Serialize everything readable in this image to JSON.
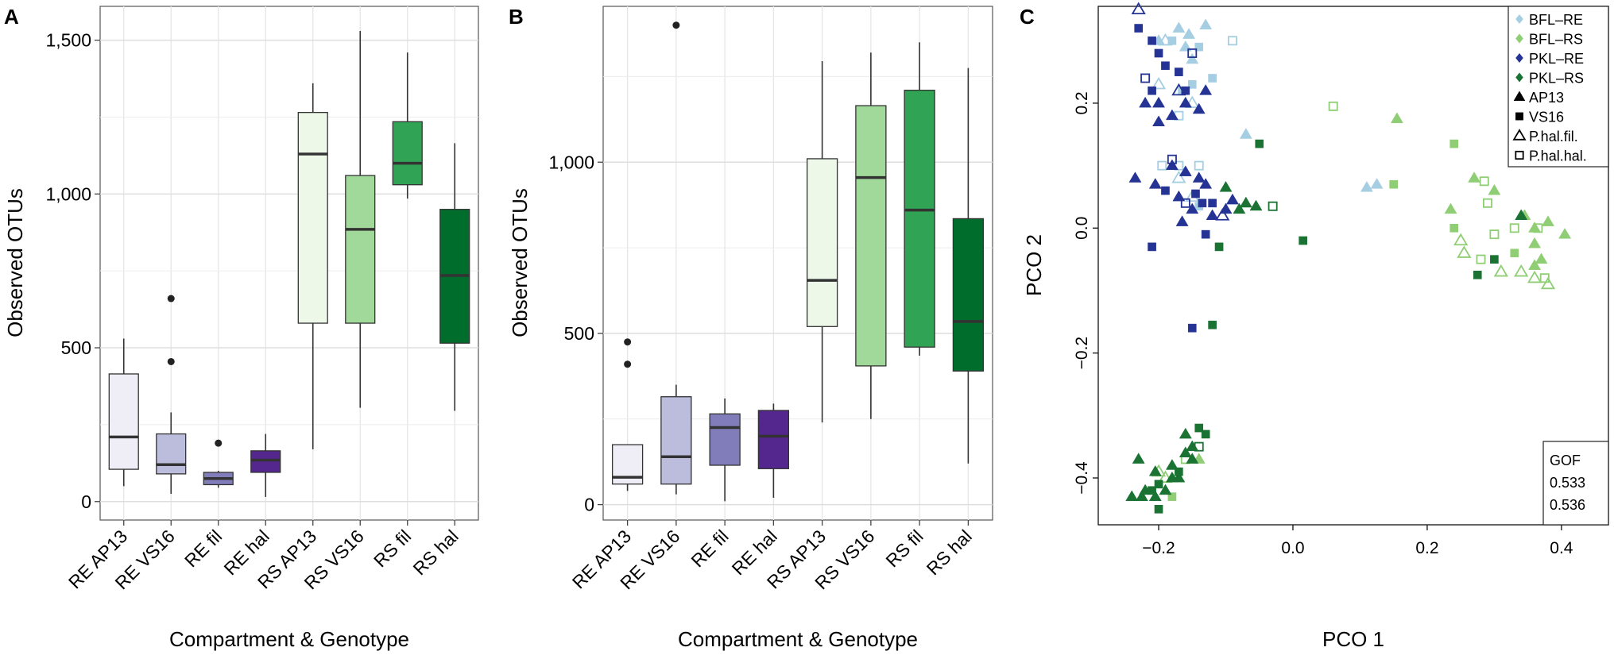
{
  "figure": {
    "panels": [
      "A",
      "B",
      "C"
    ]
  },
  "colors": {
    "re_ap13": "#efedf5",
    "re_vs16": "#bcbddc",
    "re_fil": "#807dba",
    "re_hal": "#54278f",
    "rs_ap13": "#edf8e9",
    "rs_vs16": "#a1d99b",
    "rs_fil": "#31a354",
    "rs_hal": "#006d2c",
    "bfl_re": "#a6cee3",
    "bfl_rs": "#8fce74",
    "pkl_re": "#253494",
    "pkl_rs": "#1a7233",
    "median": "#333333",
    "outlier": "#222222",
    "grid": "#e6e6e6"
  },
  "chart_data": [
    {
      "panel": "A",
      "type": "box",
      "title": "",
      "xlabel": "Compartment & Genotype",
      "ylabel": "Observed OTUs",
      "ylim": [
        -60,
        1610
      ],
      "yticks": [
        0,
        500,
        1000,
        1500
      ],
      "ytick_labels": [
        "0",
        "500",
        "1,000",
        "1,500"
      ],
      "categories": [
        "RE AP13",
        "RE VS16",
        "RE fil",
        "RE hal",
        "RS AP13",
        "RS VS16",
        "RS fil",
        "RS hal"
      ],
      "boxes": [
        {
          "category": "RE AP13",
          "color": "#efedf5",
          "min": 50,
          "q1": 105,
          "median": 210,
          "q3": 415,
          "max": 530,
          "outliers": []
        },
        {
          "category": "RE VS16",
          "color": "#bcbddc",
          "min": 25,
          "q1": 90,
          "median": 120,
          "q3": 220,
          "max": 290,
          "outliers": [
            455,
            660
          ]
        },
        {
          "category": "RE fil",
          "color": "#807dba",
          "min": 45,
          "q1": 55,
          "median": 75,
          "q3": 95,
          "max": 100,
          "outliers": [
            190
          ]
        },
        {
          "category": "RE hal",
          "color": "#54278f",
          "min": 15,
          "q1": 95,
          "median": 135,
          "q3": 165,
          "max": 220,
          "outliers": []
        },
        {
          "category": "RS AP13",
          "color": "#edf8e9",
          "min": 170,
          "q1": 580,
          "median": 1130,
          "q3": 1265,
          "max": 1360,
          "outliers": []
        },
        {
          "category": "RS VS16",
          "color": "#a1d99b",
          "min": 305,
          "q1": 580,
          "median": 885,
          "q3": 1060,
          "max": 1530,
          "outliers": []
        },
        {
          "category": "RS fil",
          "color": "#31a354",
          "min": 985,
          "q1": 1030,
          "median": 1100,
          "q3": 1235,
          "max": 1460,
          "outliers": []
        },
        {
          "category": "RS hal",
          "color": "#006d2c",
          "min": 295,
          "q1": 515,
          "median": 735,
          "q3": 950,
          "max": 1165,
          "outliers": []
        }
      ]
    },
    {
      "panel": "B",
      "type": "box",
      "title": "",
      "xlabel": "Compartment & Genotype",
      "ylabel": "Observed OTUs",
      "ylim": [
        -45,
        1455
      ],
      "yticks": [
        0,
        500,
        1000
      ],
      "ytick_labels": [
        "0",
        "500",
        "1,000"
      ],
      "categories": [
        "RE AP13",
        "RE VS16",
        "RE fil",
        "RE hal",
        "RS AP13",
        "RS VS16",
        "RS fil",
        "RS hal"
      ],
      "boxes": [
        {
          "category": "RE AP13",
          "color": "#efedf5",
          "min": 40,
          "q1": 60,
          "median": 80,
          "q3": 175,
          "max": 175,
          "outliers": [
            410,
            475
          ]
        },
        {
          "category": "RE VS16",
          "color": "#bcbddc",
          "min": 30,
          "q1": 60,
          "median": 140,
          "q3": 315,
          "max": 350,
          "outliers": [
            1400
          ]
        },
        {
          "category": "RE fil",
          "color": "#807dba",
          "min": 10,
          "q1": 115,
          "median": 225,
          "q3": 265,
          "max": 310,
          "outliers": []
        },
        {
          "category": "RE hal",
          "color": "#54278f",
          "min": 20,
          "q1": 105,
          "median": 200,
          "q3": 275,
          "max": 295,
          "outliers": []
        },
        {
          "category": "RS AP13",
          "color": "#edf8e9",
          "min": 240,
          "q1": 520,
          "median": 655,
          "q3": 1010,
          "max": 1295,
          "outliers": []
        },
        {
          "category": "RS VS16",
          "color": "#a1d99b",
          "min": 250,
          "q1": 405,
          "median": 955,
          "q3": 1165,
          "max": 1320,
          "outliers": []
        },
        {
          "category": "RS fil",
          "color": "#31a354",
          "min": 435,
          "q1": 460,
          "median": 860,
          "q3": 1210,
          "max": 1350,
          "outliers": []
        },
        {
          "category": "RS hal",
          "color": "#006d2c",
          "min": 120,
          "q1": 390,
          "median": 535,
          "q3": 835,
          "max": 1275,
          "outliers": []
        }
      ]
    },
    {
      "panel": "C",
      "type": "scatter",
      "title": "",
      "xlabel": "PCO 1",
      "ylabel": "PCO 2",
      "xlim": [
        -0.29,
        0.47
      ],
      "ylim": [
        -0.475,
        0.355
      ],
      "xticks": [
        -0.2,
        0.0,
        0.2,
        0.4
      ],
      "xtick_labels": [
        "−0.2",
        "0.0",
        "0.2",
        "0.4"
      ],
      "yticks": [
        -0.4,
        -0.2,
        0.0,
        0.2
      ],
      "ytick_labels": [
        "−0.4",
        "−0.2",
        "0.0",
        "0.2"
      ],
      "legend": [
        {
          "label": "BFL–RE",
          "shape": "diamond",
          "color": "#a6cee3"
        },
        {
          "label": "BFL–RS",
          "shape": "diamond",
          "color": "#8fce74"
        },
        {
          "label": "PKL–RE",
          "shape": "diamond",
          "color": "#253494"
        },
        {
          "label": "PKL–RS",
          "shape": "diamond",
          "color": "#1a7233"
        },
        {
          "label": "AP13",
          "shape": "triangle",
          "color": "#000000"
        },
        {
          "label": "VS16",
          "shape": "square",
          "color": "#000000"
        },
        {
          "label": "P.hal.fil.",
          "shape": "triangle-open",
          "color": "#000000"
        },
        {
          "label": "P.hal.hal.",
          "shape": "square-open",
          "color": "#000000"
        }
      ],
      "gof": {
        "title": "GOF",
        "values": [
          "0.533",
          "0.536"
        ]
      },
      "series": [
        {
          "name": "BFL–RE",
          "color": "#a6cee3",
          "points": [
            [
              -0.2,
              0.3,
              "tri"
            ],
            [
              -0.17,
              0.32,
              "tri"
            ],
            [
              -0.155,
              0.31,
              "tri"
            ],
            [
              -0.13,
              0.325,
              "tri"
            ],
            [
              -0.16,
              0.29,
              "tri"
            ],
            [
              -0.15,
              0.27,
              "tri"
            ],
            [
              -0.18,
              0.3,
              "sq"
            ],
            [
              -0.14,
              0.29,
              "sq"
            ],
            [
              -0.12,
              0.24,
              "sq"
            ],
            [
              -0.15,
              0.23,
              "sq"
            ],
            [
              -0.165,
              0.22,
              "sq"
            ],
            [
              -0.19,
              0.3,
              "tri_o"
            ],
            [
              -0.2,
              0.23,
              "tri_o"
            ],
            [
              -0.15,
              0.2,
              "tri_o"
            ],
            [
              -0.17,
              0.08,
              "tri_o"
            ],
            [
              -0.15,
              0.05,
              "tri_o"
            ],
            [
              -0.09,
              0.3,
              "sq_o"
            ],
            [
              -0.195,
              0.1,
              "sq_o"
            ],
            [
              -0.17,
              0.1,
              "sq_o"
            ],
            [
              -0.14,
              0.1,
              "sq_o"
            ],
            [
              -0.17,
              0.18,
              "sq_o"
            ],
            [
              -0.07,
              0.15,
              "tri"
            ],
            [
              0.11,
              0.065,
              "tri"
            ],
            [
              0.125,
              0.07,
              "tri"
            ],
            [
              -0.14,
              0.035,
              "sq"
            ]
          ]
        },
        {
          "name": "BFL–RS",
          "color": "#8fce74",
          "points": [
            [
              0.06,
              0.195,
              "sq_o"
            ],
            [
              0.155,
              0.175,
              "tri"
            ],
            [
              0.24,
              0.135,
              "sq"
            ],
            [
              0.15,
              0.07,
              "sq"
            ],
            [
              0.27,
              0.08,
              "tri"
            ],
            [
              0.3,
              0.06,
              "tri"
            ],
            [
              0.235,
              0.03,
              "tri"
            ],
            [
              0.285,
              0.075,
              "sq_o"
            ],
            [
              0.29,
              0.04,
              "sq_o"
            ],
            [
              0.345,
              0.02,
              "tri"
            ],
            [
              0.36,
              0.0,
              "tri"
            ],
            [
              0.38,
              0.01,
              "tri"
            ],
            [
              0.405,
              -0.01,
              "tri"
            ],
            [
              0.24,
              0.0,
              "sq"
            ],
            [
              0.25,
              -0.02,
              "tri_o"
            ],
            [
              0.3,
              -0.01,
              "sq_o"
            ],
            [
              0.33,
              0.0,
              "sq_o"
            ],
            [
              0.365,
              0.0,
              "sq_o"
            ],
            [
              0.36,
              -0.025,
              "tri"
            ],
            [
              0.28,
              -0.05,
              "sq_o"
            ],
            [
              0.31,
              -0.07,
              "tri_o"
            ],
            [
              0.34,
              -0.07,
              "tri_o"
            ],
            [
              0.36,
              -0.08,
              "tri_o"
            ],
            [
              0.37,
              -0.05,
              "tri"
            ],
            [
              0.33,
              -0.04,
              "sq"
            ],
            [
              0.255,
              -0.04,
              "tri_o"
            ],
            [
              0.36,
              -0.06,
              "tri"
            ],
            [
              0.375,
              -0.08,
              "sq_o"
            ],
            [
              0.38,
              -0.09,
              "tri_o"
            ],
            [
              -0.19,
              -0.4,
              "tri_o"
            ],
            [
              -0.16,
              -0.37,
              "sq_o"
            ],
            [
              -0.18,
              -0.43,
              "sq"
            ],
            [
              -0.14,
              -0.37,
              "tri"
            ],
            [
              -0.2,
              -0.39,
              "tri_o"
            ]
          ]
        },
        {
          "name": "PKL–RE",
          "color": "#253494",
          "points": [
            [
              -0.23,
              0.32,
              "sq"
            ],
            [
              -0.21,
              0.3,
              "sq"
            ],
            [
              -0.2,
              0.28,
              "sq"
            ],
            [
              -0.19,
              0.26,
              "sq"
            ],
            [
              -0.17,
              0.25,
              "sq"
            ],
            [
              -0.21,
              0.22,
              "sq"
            ],
            [
              -0.16,
              0.22,
              "sq"
            ],
            [
              -0.2,
              0.2,
              "tri"
            ],
            [
              -0.22,
              0.2,
              "tri"
            ],
            [
              -0.18,
              0.18,
              "tri"
            ],
            [
              -0.16,
              0.2,
              "tri"
            ],
            [
              -0.2,
              0.17,
              "tri"
            ],
            [
              -0.13,
              0.22,
              "tri"
            ],
            [
              -0.14,
              0.19,
              "tri"
            ],
            [
              -0.23,
              0.35,
              "tri_o"
            ],
            [
              -0.15,
              0.28,
              "sq_o"
            ],
            [
              -0.22,
              0.24,
              "sq_o"
            ],
            [
              -0.17,
              0.22,
              "tri_o"
            ],
            [
              -0.235,
              0.08,
              "tri"
            ],
            [
              -0.205,
              0.07,
              "tri"
            ],
            [
              -0.19,
              0.06,
              "sq"
            ],
            [
              -0.18,
              0.1,
              "tri"
            ],
            [
              -0.16,
              0.09,
              "tri"
            ],
            [
              -0.14,
              0.08,
              "tri"
            ],
            [
              -0.13,
              0.07,
              "tri"
            ],
            [
              -0.17,
              0.05,
              "tri"
            ],
            [
              -0.145,
              0.055,
              "sq"
            ],
            [
              -0.12,
              0.04,
              "sq"
            ],
            [
              -0.1,
              0.03,
              "tri"
            ],
            [
              -0.09,
              0.045,
              "tri"
            ],
            [
              -0.15,
              0.03,
              "tri"
            ],
            [
              -0.165,
              0.01,
              "tri"
            ],
            [
              -0.12,
              0.02,
              "tri"
            ],
            [
              -0.135,
              0.04,
              "sq"
            ],
            [
              -0.18,
              0.11,
              "sq_o"
            ],
            [
              -0.16,
              0.04,
              "sq_o"
            ],
            [
              -0.105,
              0.02,
              "tri_o"
            ],
            [
              -0.21,
              -0.03,
              "sq"
            ],
            [
              -0.13,
              -0.01,
              "sq"
            ],
            [
              -0.15,
              -0.16,
              "sq"
            ]
          ]
        },
        {
          "name": "PKL–RS",
          "color": "#1a7233",
          "points": [
            [
              -0.05,
              0.135,
              "sq"
            ],
            [
              -0.1,
              0.065,
              "tri"
            ],
            [
              -0.07,
              0.04,
              "tri"
            ],
            [
              -0.08,
              0.03,
              "tri"
            ],
            [
              -0.055,
              0.035,
              "tri"
            ],
            [
              -0.11,
              -0.03,
              "sq"
            ],
            [
              0.015,
              -0.02,
              "sq"
            ],
            [
              -0.03,
              0.035,
              "sq_o"
            ],
            [
              -0.12,
              -0.155,
              "sq"
            ],
            [
              0.34,
              0.02,
              "tri"
            ],
            [
              0.3,
              -0.05,
              "sq"
            ],
            [
              0.275,
              -0.075,
              "sq"
            ],
            [
              -0.23,
              -0.37,
              "tri"
            ],
            [
              -0.205,
              -0.39,
              "tri"
            ],
            [
              -0.18,
              -0.38,
              "tri"
            ],
            [
              -0.16,
              -0.36,
              "tri"
            ],
            [
              -0.15,
              -0.35,
              "tri"
            ],
            [
              -0.14,
              -0.32,
              "sq"
            ],
            [
              -0.16,
              -0.33,
              "tri"
            ],
            [
              -0.17,
              -0.4,
              "tri"
            ],
            [
              -0.13,
              -0.33,
              "sq"
            ],
            [
              -0.2,
              -0.41,
              "sq"
            ],
            [
              -0.21,
              -0.42,
              "sq"
            ],
            [
              -0.205,
              -0.43,
              "tri"
            ],
            [
              -0.24,
              -0.43,
              "tri"
            ],
            [
              -0.22,
              -0.42,
              "tri"
            ],
            [
              -0.19,
              -0.42,
              "tri"
            ],
            [
              -0.17,
              -0.39,
              "sq"
            ],
            [
              -0.2,
              -0.45,
              "sq"
            ],
            [
              -0.14,
              -0.35,
              "sq_o"
            ],
            [
              -0.15,
              -0.37,
              "tri"
            ],
            [
              -0.18,
              -0.4,
              "tri"
            ],
            [
              -0.225,
              -0.43,
              "tri"
            ]
          ]
        }
      ]
    }
  ]
}
